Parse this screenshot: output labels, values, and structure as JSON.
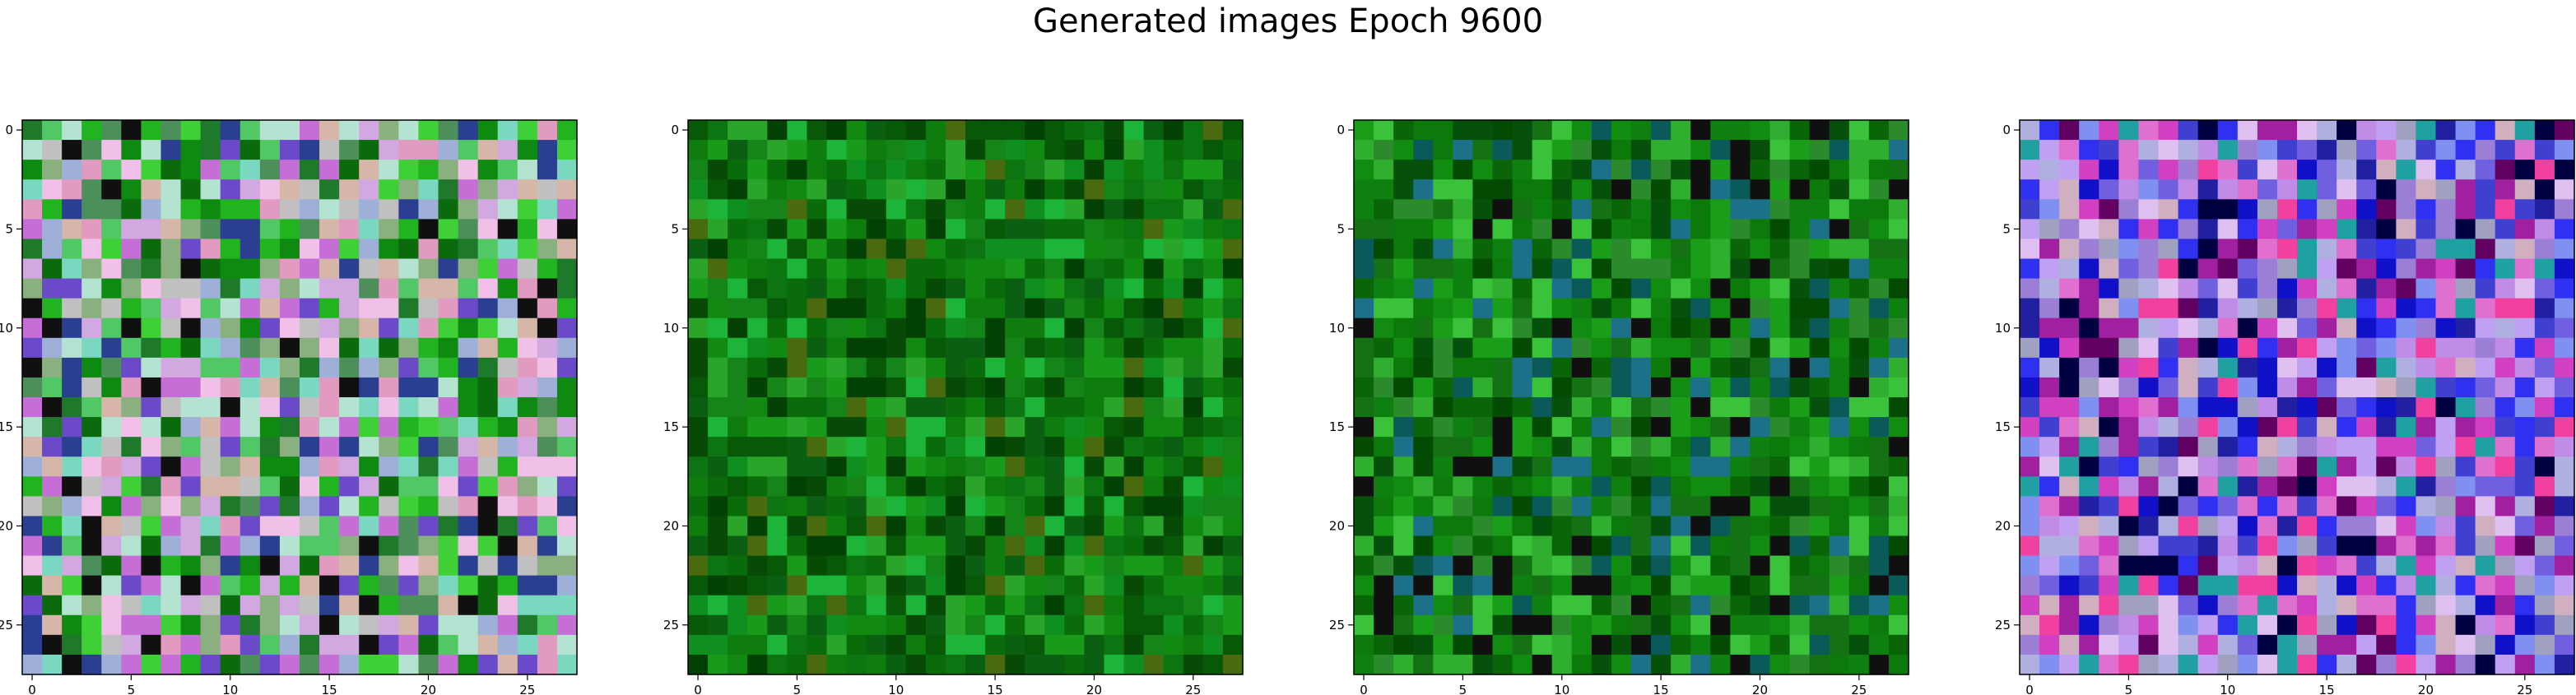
{
  "title": "Generated images Epoch 9600",
  "chart_data": [
    {
      "type": "heatmap",
      "title": "",
      "xlabel": "",
      "ylabel": "",
      "xlim": [
        -0.5,
        27.5
      ],
      "ylim": [
        27.5,
        -0.5
      ],
      "xticks": [
        0,
        5,
        10,
        15,
        20,
        25
      ],
      "yticks": [
        0,
        5,
        10,
        15,
        20,
        25
      ],
      "grid": false,
      "grid_size": [
        28,
        28
      ],
      "palette": [
        "#0f8a10",
        "#22b320",
        "#3fcf36",
        "#0b6a0c",
        "#1e7a2a",
        "#52c765",
        "#7bd8c0",
        "#b5e3d2",
        "#9fb0d8",
        "#d2a8e0",
        "#c46ed6",
        "#e19ac0",
        "#d5b6a8",
        "#8ab080",
        "#4d8f5a",
        "#2a3f8f",
        "#101010",
        "#6a4ac8",
        "#c0c0c0",
        "#f0c0e8"
      ],
      "seed": 11
    },
    {
      "type": "heatmap",
      "title": "",
      "xlabel": "",
      "ylabel": "",
      "xlim": [
        -0.5,
        27.5
      ],
      "ylim": [
        27.5,
        -0.5
      ],
      "xticks": [
        0,
        5,
        10,
        15,
        20,
        25
      ],
      "yticks": [
        0,
        5,
        10,
        15,
        20,
        25
      ],
      "grid": false,
      "grid_size": [
        28,
        28
      ],
      "palette": [
        "#0a6b0a",
        "#0e7d0e",
        "#128a12",
        "#075807",
        "#1a9a1a",
        "#0c7410",
        "#064a06",
        "#2aa52a",
        "#15851a",
        "#034003",
        "#4a6a10",
        "#1db43a",
        "#0a5f12",
        "#0f8f20"
      ],
      "seed": 23
    },
    {
      "type": "heatmap",
      "title": "",
      "xlabel": "",
      "ylabel": "",
      "xlim": [
        -0.5,
        27.5
      ],
      "ylim": [
        27.5,
        -0.5
      ],
      "xticks": [
        0,
        5,
        10,
        15,
        20,
        25
      ],
      "yticks": [
        0,
        5,
        10,
        15,
        20,
        25
      ],
      "grid": false,
      "grid_size": [
        28,
        28
      ],
      "palette": [
        "#0b7a0b",
        "#118c11",
        "#0a6408",
        "#1a9e1a",
        "#05500a",
        "#2fae2f",
        "#0e8010",
        "#034a03",
        "#3ac23a",
        "#147214",
        "#0a5a5a",
        "#1c7088",
        "#101010",
        "#2b8a2b"
      ],
      "seed": 37
    },
    {
      "type": "heatmap",
      "title": "",
      "xlabel": "",
      "ylabel": "",
      "xlim": [
        -0.5,
        27.5
      ],
      "ylim": [
        27.5,
        -0.5
      ],
      "xticks": [
        0,
        5,
        10,
        15,
        20,
        25
      ],
      "yticks": [
        0,
        5,
        10,
        15,
        20,
        25
      ],
      "grid": false,
      "grid_size": [
        28,
        28
      ],
      "palette": [
        "#9b7fd6",
        "#c08ce8",
        "#7060e0",
        "#1010c8",
        "#2020a0",
        "#b0b0e0",
        "#e070d0",
        "#d040c0",
        "#a020a0",
        "#4040d0",
        "#000040",
        "#8090f0",
        "#c0a0f0",
        "#e0c0f0",
        "#600060",
        "#20a0a0",
        "#f040a0",
        "#a0a0c0",
        "#3030f0",
        "#d0b0c0"
      ],
      "seed": 51
    }
  ]
}
